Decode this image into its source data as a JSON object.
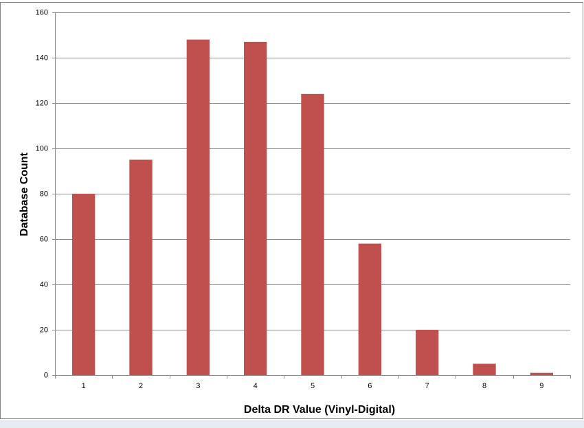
{
  "chart_data": {
    "type": "bar",
    "x_label": "Delta DR Value (Vinyl-Digital)",
    "y_label": "Database Count",
    "categories": [
      "1",
      "2",
      "3",
      "4",
      "5",
      "6",
      "7",
      "8",
      "9"
    ],
    "values": [
      80,
      95,
      148,
      147,
      124,
      58,
      20,
      5,
      1
    ],
    "color": "#c0504d",
    "ylim": [
      0,
      160
    ],
    "yticks": [
      0,
      20,
      40,
      60,
      80,
      100,
      120,
      140,
      160
    ],
    "grid": true
  }
}
